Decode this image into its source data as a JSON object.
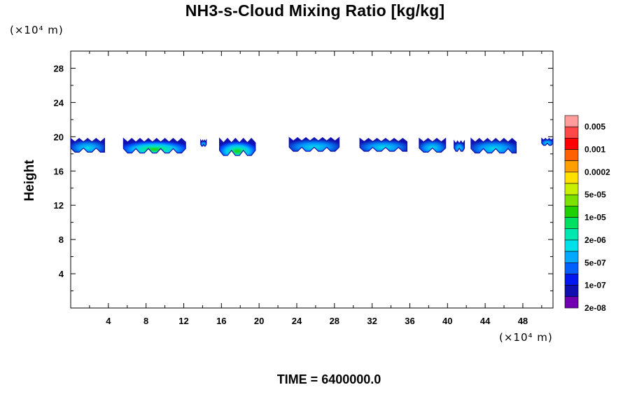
{
  "title": "NH3-s-Cloud Mixing Ratio [kg/kg]",
  "y_unit_label": "(×10⁴ m)",
  "x_unit_label": "(×10⁴ m)",
  "time_label": "TIME = 6400000.0",
  "chart_data": {
    "type": "heatmap",
    "title": "NH3-s-Cloud Mixing Ratio [kg/kg]",
    "xlabel": "",
    "ylabel": "Height",
    "x_unit": "(×10⁴ m)",
    "y_unit": "(×10⁴ m)",
    "xlim": [
      0,
      51.2
    ],
    "ylim": [
      0,
      30
    ],
    "x_ticks": [
      4,
      8,
      12,
      16,
      20,
      24,
      28,
      32,
      36,
      40,
      44,
      48
    ],
    "y_ticks": [
      4,
      8,
      12,
      16,
      20,
      24,
      28
    ],
    "colorbar": {
      "labels": [
        "0.005",
        "0.001",
        "0.0002",
        "5e-05",
        "1e-05",
        "2e-06",
        "5e-07",
        "1e-07",
        "2e-08"
      ],
      "colors": [
        "#FF9C9C",
        "#FF4848",
        "#FF0000",
        "#FF6000",
        "#FFA000",
        "#FFE000",
        "#C8F000",
        "#7CE000",
        "#20D000",
        "#00E060",
        "#00E8B0",
        "#00E0E8",
        "#00A8FF",
        "#0060FF",
        "#0018F0",
        "#1010B0",
        "#7000B0"
      ]
    },
    "cloud_patches": [
      {
        "x_range": [
          0,
          3.6
        ],
        "z_range": [
          18.2,
          19.8
        ],
        "max_level": "2e-06"
      },
      {
        "x_range": [
          5.6,
          12.2
        ],
        "z_range": [
          18.1,
          19.8
        ],
        "max_level": "1e-05"
      },
      {
        "x_range": [
          13.8,
          14.4
        ],
        "z_range": [
          18.9,
          19.6
        ],
        "max_level": "1e-07"
      },
      {
        "x_range": [
          15.8,
          19.6
        ],
        "z_range": [
          17.8,
          19.8
        ],
        "max_level": "5e-05"
      },
      {
        "x_range": [
          23.2,
          28.5
        ],
        "z_range": [
          18.3,
          19.9
        ],
        "max_level": "2e-06"
      },
      {
        "x_range": [
          30.7,
          35.7
        ],
        "z_range": [
          18.3,
          19.8
        ],
        "max_level": "2e-06"
      },
      {
        "x_range": [
          37.0,
          39.8
        ],
        "z_range": [
          18.2,
          19.8
        ],
        "max_level": "2e-06"
      },
      {
        "x_range": [
          40.7,
          41.8
        ],
        "z_range": [
          18.3,
          19.5
        ],
        "max_level": "5e-07"
      },
      {
        "x_range": [
          42.5,
          47.3
        ],
        "z_range": [
          18.1,
          19.8
        ],
        "max_level": "2e-06"
      },
      {
        "x_range": [
          50.0,
          51.2
        ],
        "z_range": [
          19.0,
          19.8
        ],
        "max_level": "1e-07"
      }
    ]
  }
}
